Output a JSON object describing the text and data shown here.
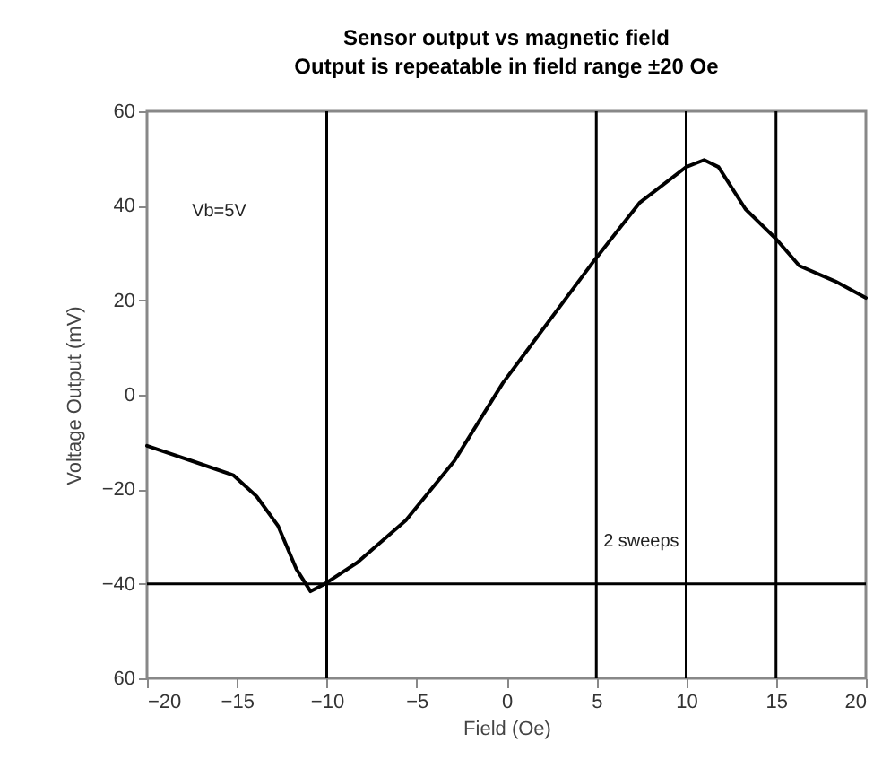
{
  "chart_data": {
    "type": "line",
    "title": "Sensor output vs magnetic field",
    "subtitle": "Output is repeatable in field range ±20 Oe",
    "xlabel": "Field (Oe)",
    "ylabel": "Voltage Output (mV)",
    "x": [
      -20,
      -17.5,
      -15.2,
      -13.9,
      -12.7,
      -11.7,
      -10.9,
      -10.1,
      -8.3,
      -5.6,
      -2.9,
      -0.2,
      0.8,
      4.9,
      7.4,
      10,
      11,
      11.8,
      13.3,
      15,
      16.3,
      18.3,
      20
    ],
    "series": [
      {
        "color": "#000000",
        "values": [
          -10.8,
          -14,
          -17,
          -21.5,
          -27.8,
          -36.8,
          -41.6,
          -40,
          -35.5,
          -26.6,
          -14,
          2.5,
          7.6,
          28.5,
          40.6,
          48.2,
          49.7,
          48.2,
          39.3,
          33,
          27.3,
          24,
          20.5
        ]
      }
    ],
    "xlim": [
      -20,
      20
    ],
    "xticks": [
      -20,
      -15,
      -10,
      -5,
      0,
      5,
      10,
      15,
      20
    ],
    "ylim": [
      -60,
      60
    ],
    "yticks": [
      {
        "value": -60,
        "label": "60"
      },
      -40,
      -20,
      0,
      20,
      40,
      60
    ],
    "ref_lines": [
      {
        "axis": "x",
        "value": -10
      },
      {
        "axis": "x",
        "value": 5
      },
      {
        "axis": "x",
        "value": 10
      },
      {
        "axis": "x",
        "value": 15
      },
      {
        "axis": "y",
        "value": -40
      }
    ],
    "annotations": [
      "Vb=5V",
      "2 sweeps"
    ],
    "grid": false,
    "marker": "none",
    "line_style": "solid"
  }
}
